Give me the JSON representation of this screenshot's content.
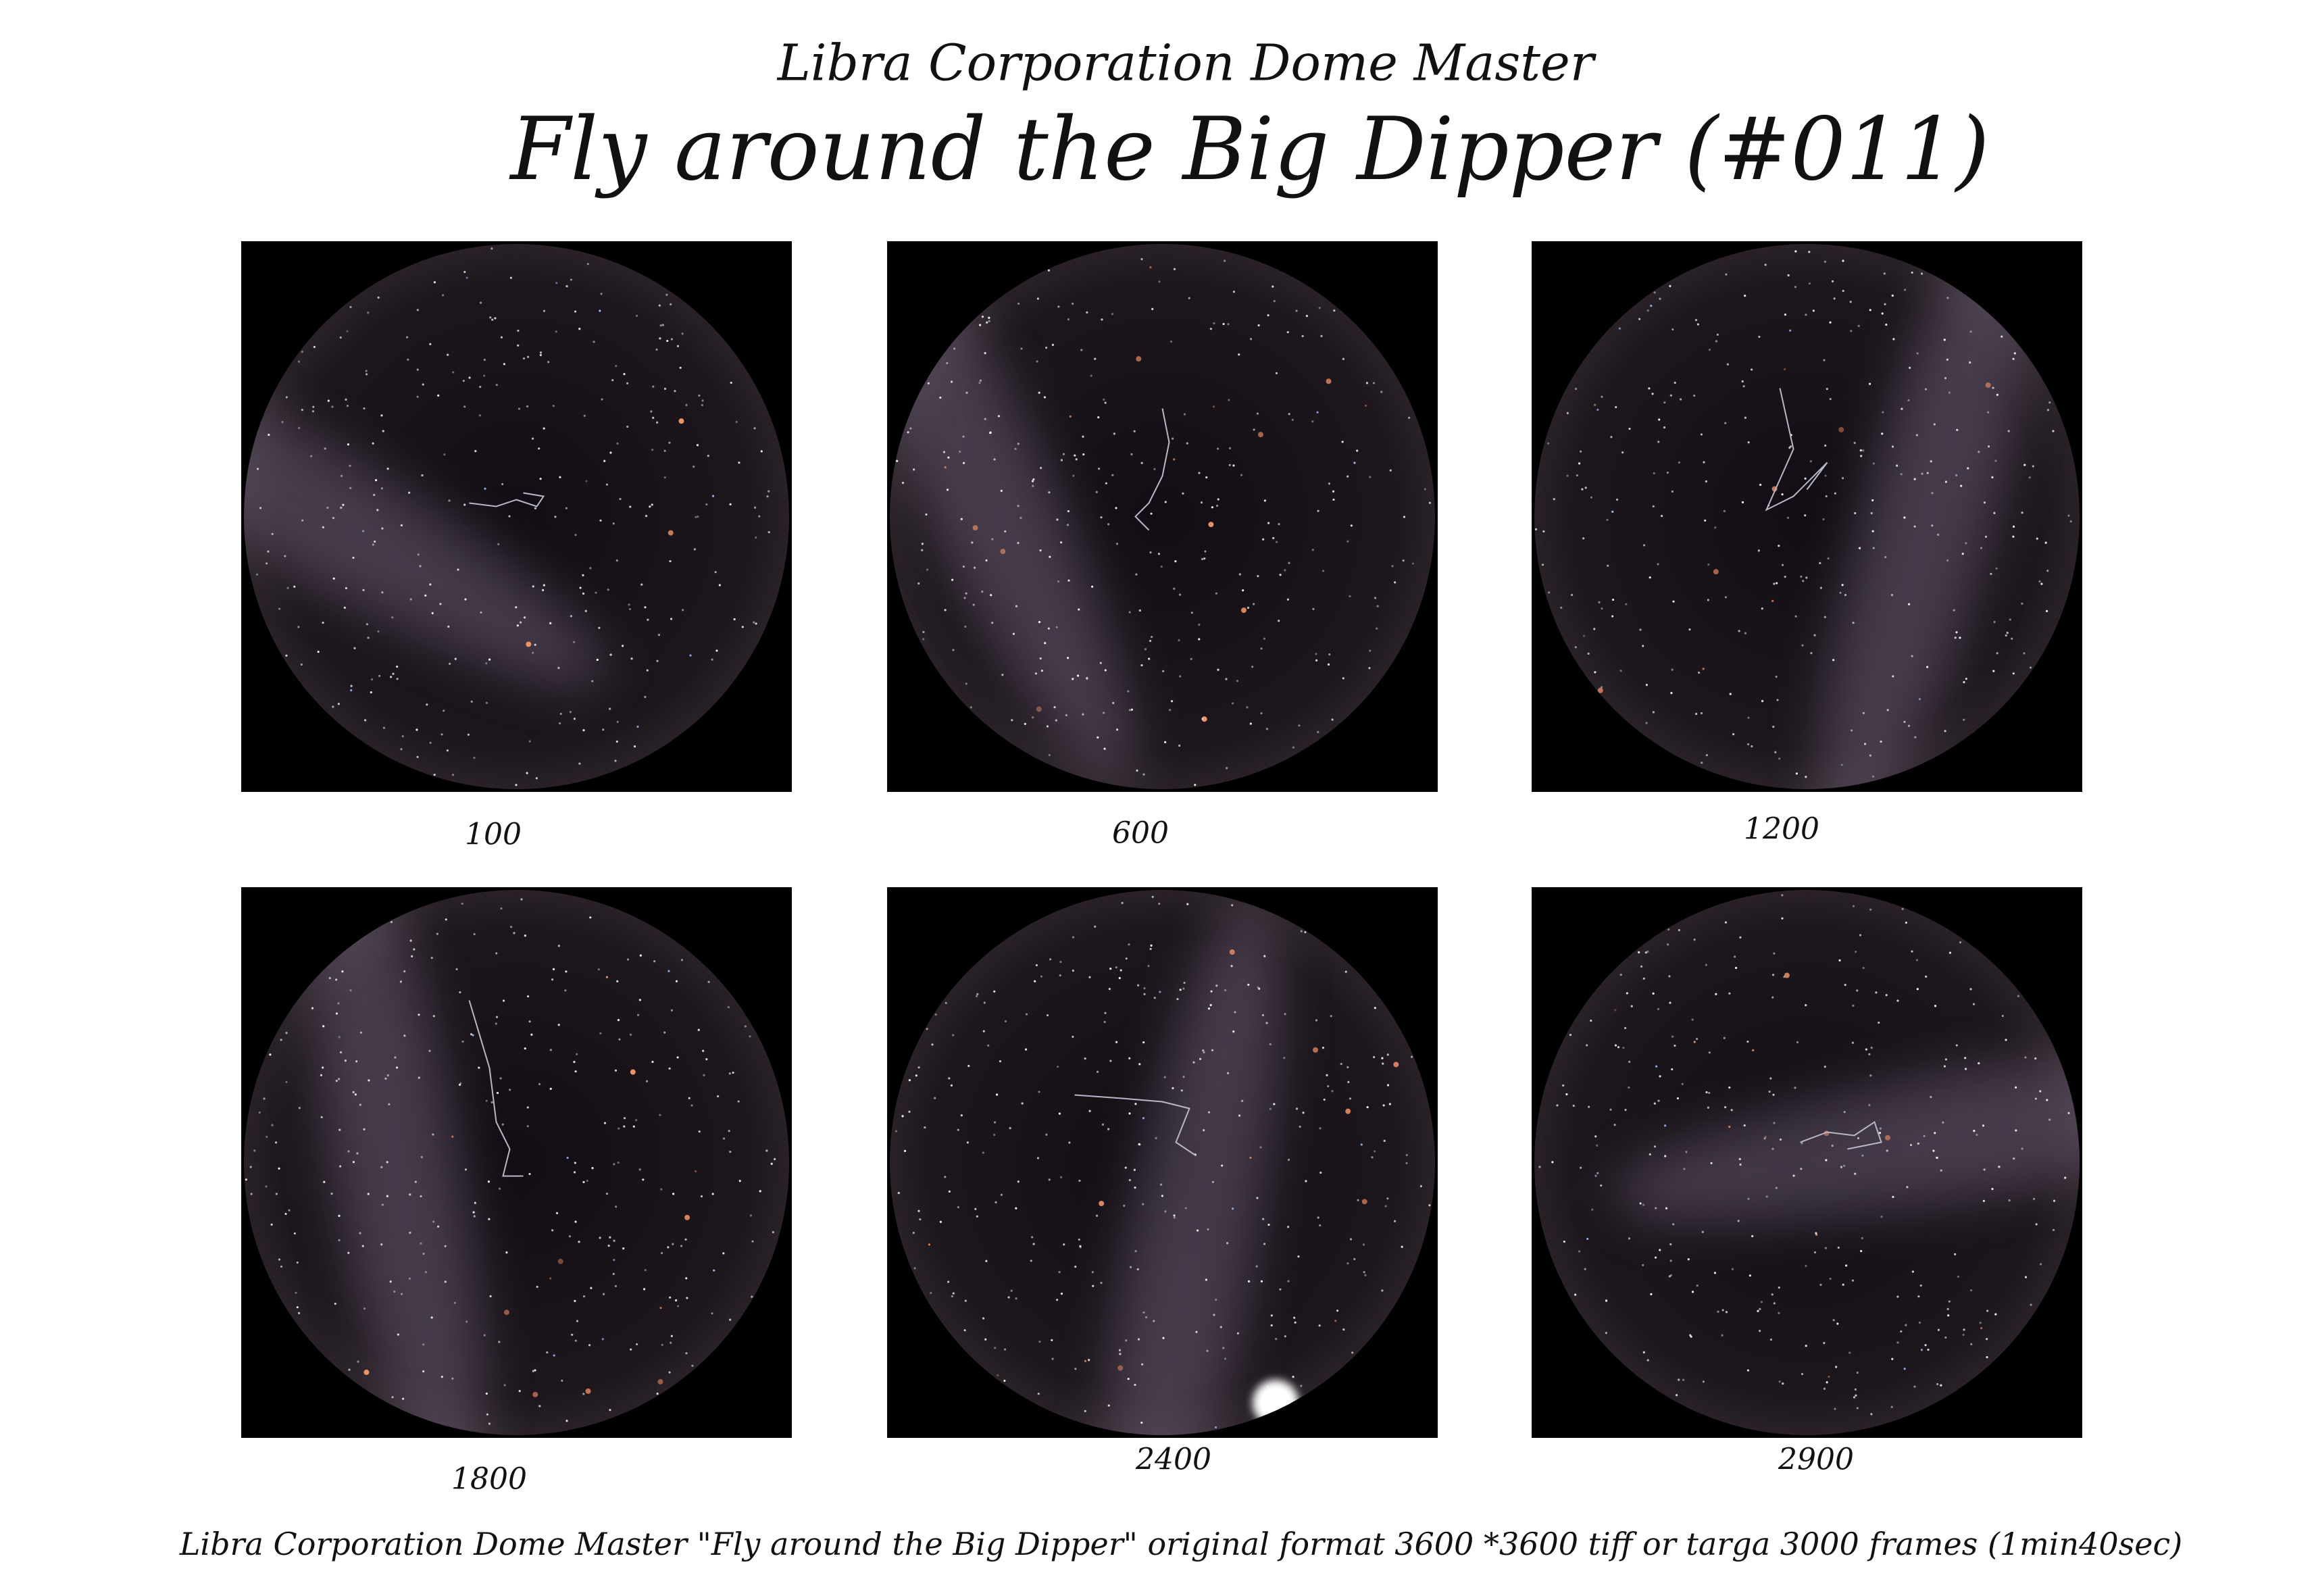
{
  "header": {
    "subtitle": "Libra Corporation Dome Master",
    "title": "Fly around the Big Dipper (#011)"
  },
  "panels": [
    {
      "label": "100"
    },
    {
      "label": "600"
    },
    {
      "label": "1200"
    },
    {
      "label": "1800"
    },
    {
      "label": "2400"
    },
    {
      "label": "2900"
    }
  ],
  "footer": {
    "text": "Libra Corporation Dome Master \"Fly around the Big Dipper\" original format 3600 *3600 tiff or targa 3000 frames (1min40sec)"
  }
}
